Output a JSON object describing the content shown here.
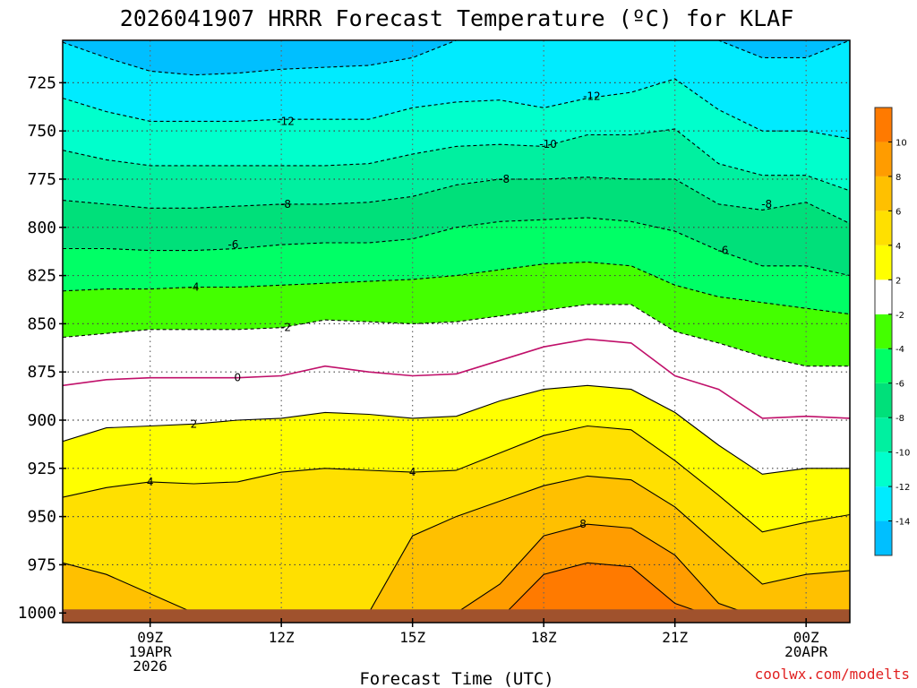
{
  "chart_data": {
    "type": "heatmap",
    "title": "2026041907 HRRR Forecast Temperature (ºC) for KLAF",
    "xlabel": "Forecast Time (UTC)",
    "ylabel": "",
    "credit": "coolwx.com/modelts",
    "x_range_hours": [
      7,
      25
    ],
    "y_range_hpa": [
      1005,
      703
    ],
    "y_ticks": [
      725,
      750,
      775,
      800,
      825,
      850,
      875,
      900,
      925,
      950,
      975,
      1000
    ],
    "y_tick_labels": [
      "725",
      "750",
      "775",
      "800",
      "825",
      "850",
      "875",
      "900",
      "925",
      "950",
      "975",
      "1000"
    ],
    "x_ticks": [
      {
        "hour": 9,
        "lines": [
          "09Z",
          "19APR",
          "2026"
        ]
      },
      {
        "hour": 12,
        "lines": [
          "12Z"
        ]
      },
      {
        "hour": 15,
        "lines": [
          "15Z"
        ]
      },
      {
        "hour": 18,
        "lines": [
          "18Z"
        ]
      },
      {
        "hour": 21,
        "lines": [
          "21Z"
        ]
      },
      {
        "hour": 24,
        "lines": [
          "00Z",
          "20APR"
        ]
      }
    ],
    "hours": [
      7,
      8,
      9,
      10,
      11,
      12,
      13,
      14,
      15,
      16,
      17,
      18,
      19,
      20,
      21,
      22,
      23,
      24,
      25
    ],
    "contours": [
      {
        "level": -14,
        "dashed": true,
        "pressure": [
          704,
          712,
          719,
          721,
          720,
          718,
          717,
          716,
          712,
          703,
          703,
          703,
          703,
          703,
          703,
          703,
          712,
          712,
          703
        ]
      },
      {
        "level": -12,
        "dashed": true,
        "pressure": [
          733,
          740,
          745,
          745,
          745,
          744,
          744,
          744,
          738,
          735,
          734,
          738,
          733,
          730,
          723,
          739,
          750,
          750,
          754
        ]
      },
      {
        "level": -10,
        "dashed": true,
        "pressure": [
          760,
          765,
          768,
          768,
          768,
          768,
          768,
          767,
          762,
          758,
          757,
          758,
          752,
          752,
          749,
          767,
          773,
          773,
          781
        ]
      },
      {
        "level": -8,
        "dashed": true,
        "pressure": [
          786,
          788,
          790,
          790,
          789,
          788,
          788,
          787,
          784,
          778,
          775,
          775,
          774,
          775,
          775,
          788,
          791,
          787,
          798
        ]
      },
      {
        "level": -6,
        "dashed": true,
        "pressure": [
          811,
          811,
          812,
          812,
          811,
          809,
          808,
          808,
          806,
          800,
          797,
          796,
          795,
          797,
          802,
          812,
          820,
          820,
          825
        ]
      },
      {
        "level": -4,
        "dashed": true,
        "pressure": [
          833,
          832,
          832,
          831,
          831,
          830,
          829,
          828,
          827,
          825,
          822,
          819,
          818,
          820,
          830,
          836,
          839,
          842,
          845
        ]
      },
      {
        "level": -2,
        "dashed": true,
        "pressure": [
          857,
          855,
          853,
          853,
          853,
          852,
          848,
          849,
          850,
          849,
          846,
          843,
          840,
          840,
          854,
          860,
          867,
          872,
          872
        ]
      },
      {
        "level": 0,
        "dashed": false,
        "pressure": [
          882,
          879,
          878,
          878,
          878,
          877,
          872,
          875,
          877,
          876,
          869,
          862,
          858,
          860,
          877,
          884,
          899,
          898,
          899
        ]
      },
      {
        "level": 2,
        "dashed": false,
        "pressure": [
          911,
          904,
          903,
          902,
          900,
          899,
          896,
          897,
          899,
          898,
          890,
          884,
          882,
          884,
          896,
          913,
          928,
          925,
          925
        ]
      },
      {
        "level": 4,
        "dashed": false,
        "pressure": [
          940,
          935,
          932,
          933,
          932,
          927,
          925,
          926,
          927,
          926,
          917,
          908,
          903,
          905,
          921,
          939,
          958,
          953,
          949
        ]
      },
      {
        "level": 6,
        "dashed": false,
        "pressure": [
          974,
          980,
          990,
          1000,
          1000,
          1000,
          1000,
          1000,
          960,
          950,
          942,
          934,
          929,
          931,
          945,
          965,
          985,
          980,
          978
        ]
      },
      {
        "level": 8,
        "dashed": false,
        "pressure": [
          1003,
          1003,
          1003,
          1003,
          1003,
          1003,
          1003,
          1003,
          1003,
          1000,
          985,
          960,
          954,
          956,
          970,
          995,
          1003,
          1003,
          1003
        ]
      },
      {
        "level": 10,
        "dashed": false,
        "pressure": [
          1003,
          1003,
          1003,
          1003,
          1003,
          1003,
          1003,
          1003,
          1003,
          1003,
          1003,
          980,
          974,
          976,
          995,
          1003,
          1003,
          1003,
          1003
        ]
      }
    ],
    "contour_labels": [
      {
        "text": "-12",
        "hour": 12.1,
        "pressure": 745
      },
      {
        "text": "-12",
        "hour": 19.1,
        "pressure": 732
      },
      {
        "text": "-10",
        "hour": 18.1,
        "pressure": 757
      },
      {
        "text": "-8",
        "hour": 17.1,
        "pressure": 775
      },
      {
        "text": "-8",
        "hour": 12.1,
        "pressure": 788
      },
      {
        "text": "-8",
        "hour": 23.1,
        "pressure": 788
      },
      {
        "text": "-6",
        "hour": 10.9,
        "pressure": 809
      },
      {
        "text": "-6",
        "hour": 22.1,
        "pressure": 812
      },
      {
        "text": "-4",
        "hour": 10.0,
        "pressure": 831
      },
      {
        "text": "-2",
        "hour": 12.1,
        "pressure": 852
      },
      {
        "text": "0",
        "hour": 11.0,
        "pressure": 878
      },
      {
        "text": "2",
        "hour": 10.0,
        "pressure": 902
      },
      {
        "text": "4",
        "hour": 9.0,
        "pressure": 932
      },
      {
        "text": "4",
        "hour": 15.0,
        "pressure": 927
      },
      {
        "text": "8",
        "hour": 18.9,
        "pressure": 954
      }
    ],
    "colorbar": {
      "levels": [
        -16,
        -14,
        -12,
        -10,
        -8,
        -6,
        -4,
        -2,
        2,
        4,
        6,
        8,
        10,
        12
      ],
      "colors": [
        "#00bfff",
        "#00ebff",
        "#00ffcc",
        "#00f0a0",
        "#00e07a",
        "#00ff66",
        "#44ff00",
        "#ffffff",
        "#ffff00",
        "#ffe000",
        "#ffc000",
        "#ff9c00",
        "#ff7a00"
      ],
      "tick_labels": [
        "-14",
        "-12",
        "-10",
        "-8",
        "-6",
        "-4",
        "-2",
        "2",
        "4",
        "6",
        "8",
        "10"
      ]
    },
    "ground_color": "#a0522d",
    "grid": true
  }
}
